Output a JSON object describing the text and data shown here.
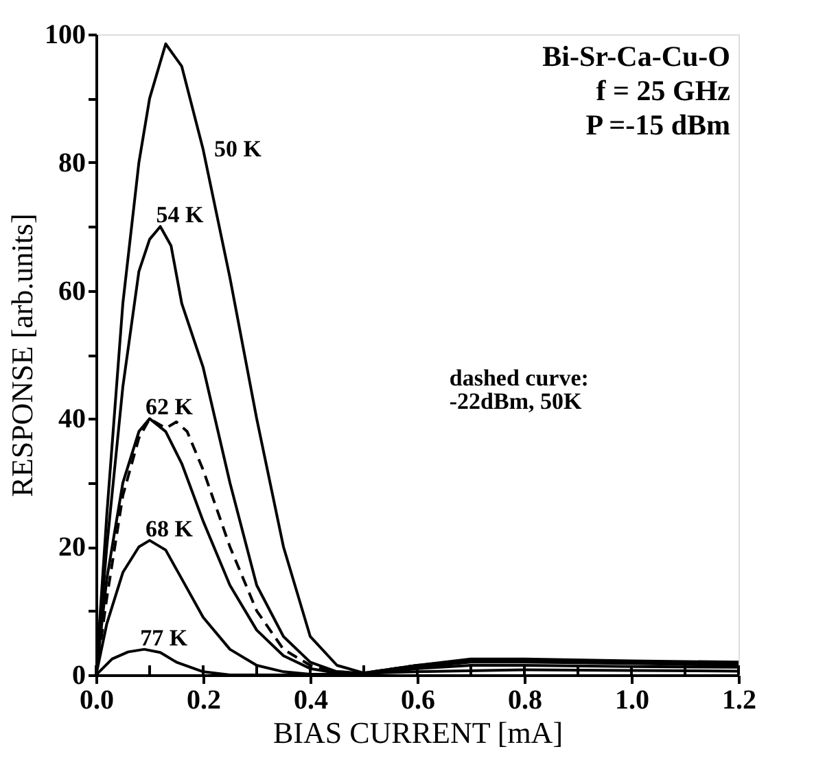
{
  "chart_data": {
    "type": "line",
    "xlabel": "BIAS CURRENT [mA]",
    "ylabel": "RESPONSE [arb.units]",
    "xlim": [
      0,
      1.2
    ],
    "ylim": [
      0,
      100
    ],
    "xticks": [
      {
        "value": 0,
        "label": "0.0"
      },
      {
        "value": 0.1,
        "label": null
      },
      {
        "value": 0.2,
        "label": "0.2"
      },
      {
        "value": 0.3,
        "label": null
      },
      {
        "value": 0.4,
        "label": "0.4"
      },
      {
        "value": 0.5,
        "label": null
      },
      {
        "value": 0.6,
        "label": "0.6"
      },
      {
        "value": 0.7,
        "label": null
      },
      {
        "value": 0.8,
        "label": "0.8"
      },
      {
        "value": 0.9,
        "label": null
      },
      {
        "value": 1.0,
        "label": "1.0"
      },
      {
        "value": 1.1,
        "label": null
      },
      {
        "value": 1.2,
        "label": "1.2"
      }
    ],
    "yticks": [
      0,
      {
        "value": 10,
        "label": null
      },
      20,
      {
        "value": 30,
        "label": null
      },
      40,
      {
        "value": 50,
        "label": null
      },
      60,
      {
        "value": 70,
        "label": null
      },
      80,
      {
        "value": 90,
        "label": null
      },
      100
    ],
    "grid": false,
    "marker": "none",
    "annotations": [
      "Bi-Sr-Ca-Cu-O",
      "f = 25 GHz",
      "P =-15 dBm",
      "dashed curve:",
      "-22dBm, 50K"
    ],
    "series": [
      {
        "name": "50 K",
        "color": "#000000",
        "line_style": "solid",
        "x": [
          0,
          0.02,
          0.05,
          0.08,
          0.1,
          0.13,
          0.16,
          0.2,
          0.25,
          0.3,
          0.35,
          0.4,
          0.45,
          0.5,
          0.6,
          0.7,
          0.8,
          1.0,
          1.2
        ],
        "values": [
          0,
          25,
          58,
          80,
          90,
          98.5,
          95,
          82,
          62,
          40,
          20,
          6,
          1.5,
          0.3,
          1.5,
          2.5,
          2.5,
          2.2,
          2
        ]
      },
      {
        "name": "54 K",
        "color": "#000000",
        "line_style": "solid",
        "x": [
          0,
          0.02,
          0.05,
          0.08,
          0.1,
          0.12,
          0.14,
          0.16,
          0.2,
          0.25,
          0.3,
          0.35,
          0.4,
          0.45,
          0.5,
          0.6,
          0.7,
          0.8,
          1.0,
          1.2
        ],
        "values": [
          0,
          20,
          45,
          63,
          68,
          70,
          67,
          58,
          48,
          30,
          14,
          6,
          2,
          0.5,
          0.3,
          1.5,
          2.2,
          2.3,
          2,
          1.8
        ]
      },
      {
        "name": "62 K",
        "color": "#000000",
        "line_style": "solid",
        "x": [
          0,
          0.02,
          0.05,
          0.08,
          0.1,
          0.13,
          0.16,
          0.2,
          0.25,
          0.3,
          0.35,
          0.4,
          0.45,
          0.5,
          0.6,
          0.7,
          0.8,
          1.0,
          1.2
        ],
        "values": [
          0,
          15,
          30,
          38,
          40,
          38,
          33,
          24,
          14,
          7,
          3,
          1,
          0.3,
          0.2,
          1.2,
          2,
          2,
          1.8,
          1.5
        ]
      },
      {
        "color": "#000000",
        "line_style": "dashed",
        "x": [
          0,
          0.02,
          0.05,
          0.08,
          0.1,
          0.13,
          0.15,
          0.17,
          0.2,
          0.25,
          0.3,
          0.35,
          0.4,
          0.45,
          0.5,
          0.6,
          0.7,
          0.8,
          1.0,
          1.2
        ],
        "values": [
          0,
          12,
          28,
          37,
          40,
          38.5,
          39.5,
          38,
          32,
          20,
          10,
          4,
          1.5,
          0.5,
          0.3,
          1.5,
          2.3,
          2.3,
          2,
          1.8
        ]
      },
      {
        "name": "68 K",
        "color": "#000000",
        "line_style": "solid",
        "x": [
          0,
          0.02,
          0.05,
          0.08,
          0.1,
          0.13,
          0.16,
          0.2,
          0.25,
          0.3,
          0.35,
          0.4,
          0.5,
          0.6,
          0.7,
          0.8,
          1.0,
          1.2
        ],
        "values": [
          0,
          8,
          16,
          20,
          21,
          19.5,
          15,
          9,
          4,
          1.5,
          0.5,
          0.1,
          0.1,
          1,
          1.5,
          1.5,
          1.3,
          1.2
        ]
      },
      {
        "name": "77 K",
        "color": "#000000",
        "line_style": "solid",
        "x": [
          0,
          0.03,
          0.06,
          0.09,
          0.12,
          0.15,
          0.2,
          0.25,
          0.4,
          0.6,
          0.8,
          1.0,
          1.2
        ],
        "values": [
          0,
          2.5,
          3.6,
          4,
          3.5,
          2,
          0.5,
          0,
          0,
          0.5,
          0.8,
          0.7,
          0.6
        ]
      }
    ]
  }
}
